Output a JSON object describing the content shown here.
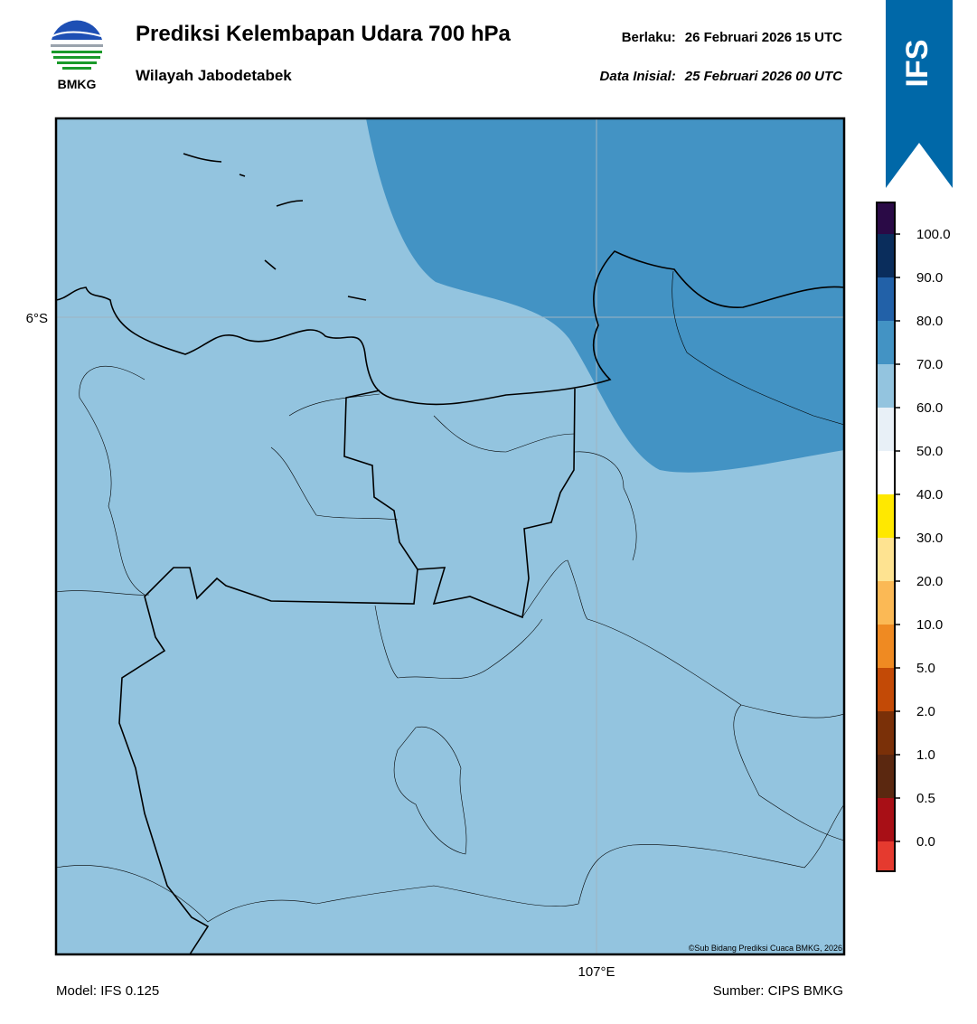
{
  "header": {
    "logo_text": "BMKG",
    "title": "Prediksi Kelembapan Udara 700 hPa",
    "subtitle": "Wilayah Jabodetabek",
    "valid_label": "Berlaku:",
    "valid_time": "26 Februari 2026 15 UTC",
    "init_label": "Data Inisial:",
    "init_time": "25 Februari 2026 00 UTC"
  },
  "badge": "IFS",
  "map": {
    "lat_label": "6°S",
    "lon_label": "107°E",
    "credit": "©Sub Bidang Prediksi Cuaca BMKG, 2026"
  },
  "colorbar": {
    "labels": [
      "0.0",
      "0.5",
      "1.0",
      "2.0",
      "5.0",
      "10.0",
      "20.0",
      "30.0",
      "40.0",
      "50.0",
      "60.0",
      "70.0",
      "80.0",
      "90.0",
      "100.0"
    ],
    "colors": [
      "#e53a2f",
      "#a80f16",
      "#5b2810",
      "#7a3008",
      "#c34a06",
      "#ef8a22",
      "#fbb955",
      "#fee391",
      "#ffe800",
      "#ffffff",
      "#e8f0f7",
      "#93c4df",
      "#4393c4",
      "#2261a8",
      "#0a2d5c",
      "#2a0a46"
    ]
  },
  "footer": {
    "model": "Model: IFS 0.125",
    "source": "Sumber: CIPS BMKG"
  }
}
